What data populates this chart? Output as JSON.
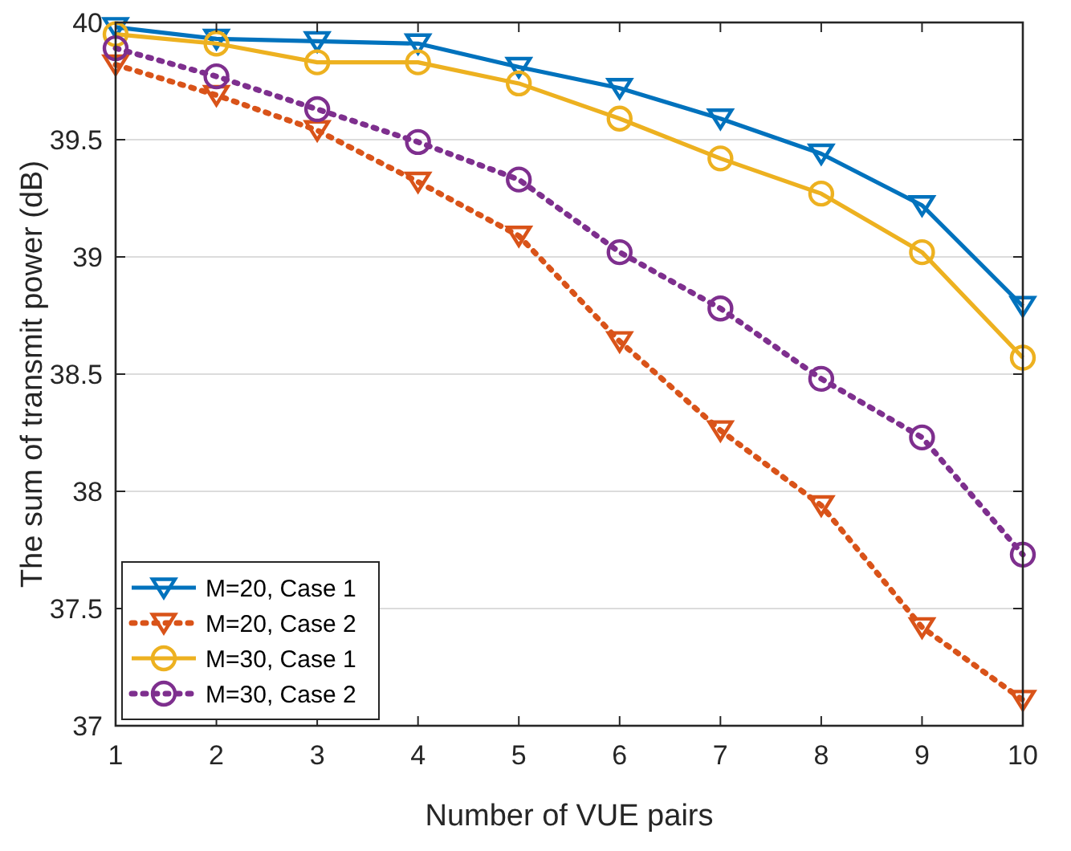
{
  "chart_data": {
    "type": "line",
    "xlabel": "Number of VUE pairs",
    "ylabel": "The sum of transmit power (dB)",
    "x": [
      1,
      2,
      3,
      4,
      5,
      6,
      7,
      8,
      9,
      10
    ],
    "series": [
      {
        "name": "M=20, Case 1",
        "color": "#0072bd",
        "marker": "triangle",
        "line_style": "solid",
        "values": [
          39.98,
          39.93,
          39.92,
          39.91,
          39.81,
          39.72,
          39.59,
          39.44,
          39.22,
          38.79
        ]
      },
      {
        "name": "M=20, Case 2",
        "color": "#d95319",
        "marker": "triangle",
        "line_style": "dotted",
        "values": [
          39.82,
          39.69,
          39.54,
          39.32,
          39.09,
          38.64,
          38.26,
          37.94,
          37.42,
          37.11
        ]
      },
      {
        "name": "M=30, Case 1",
        "color": "#edb120",
        "marker": "circle",
        "line_style": "solid",
        "values": [
          39.95,
          39.91,
          39.83,
          39.83,
          39.74,
          39.59,
          39.42,
          39.27,
          39.02,
          38.57
        ]
      },
      {
        "name": "M=30, Case 2",
        "color": "#7e2f8e",
        "marker": "circle",
        "line_style": "dotted",
        "values": [
          39.89,
          39.77,
          39.63,
          39.49,
          39.33,
          39.02,
          38.78,
          38.48,
          38.23,
          37.73
        ]
      }
    ],
    "xlim": [
      1,
      10
    ],
    "xticks": [
      1,
      2,
      3,
      4,
      5,
      6,
      7,
      8,
      9,
      10
    ],
    "ylim": [
      37,
      40
    ],
    "yticks": [
      37,
      37.5,
      38,
      38.5,
      39,
      39.5,
      40
    ],
    "grid": "y",
    "legend": "bottom left"
  }
}
